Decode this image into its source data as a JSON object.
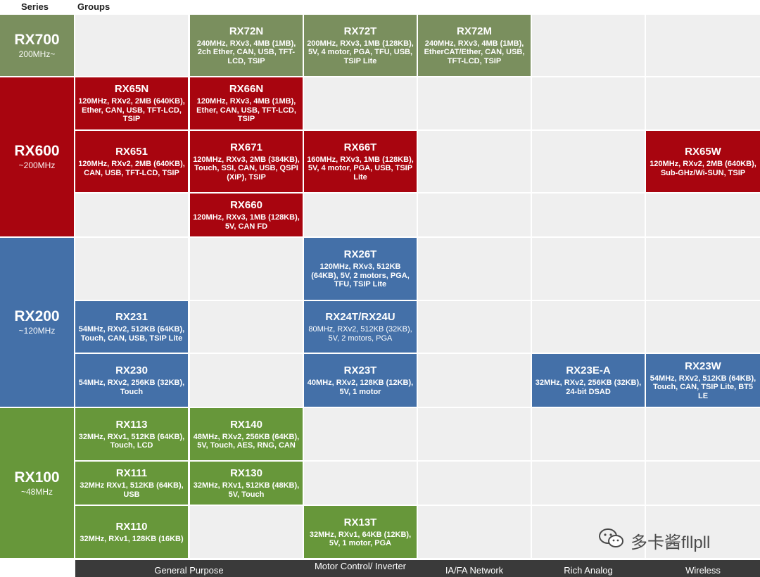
{
  "headers": {
    "series": "Series",
    "groups": "Groups"
  },
  "series": [
    {
      "name": "RX700",
      "freq": "200MHz~"
    },
    {
      "name": "RX600",
      "freq": "~200MHz"
    },
    {
      "name": "RX200",
      "freq": "~120MHz"
    },
    {
      "name": "RX100",
      "freq": "~48MHz"
    }
  ],
  "products": {
    "rx72n": {
      "name": "RX72N",
      "desc": "240MHz, RXv3, 4MB (1MB), 2ch Ether, CAN, USB, TFT-LCD, TSIP"
    },
    "rx72t": {
      "name": "RX72T",
      "desc": "200MHz, RXv3, 1MB (128KB), 5V, 4 motor, PGA, TFU, USB, TSIP Lite"
    },
    "rx72m": {
      "name": "RX72M",
      "desc": "240MHz, RXv3, 4MB (1MB), EtherCAT/Ether, CAN, USB, TFT-LCD, TSIP"
    },
    "rx65n": {
      "name": "RX65N",
      "desc": "120MHz, RXv2, 2MB (640KB), Ether, CAN, USB, TFT-LCD, TSIP"
    },
    "rx66n": {
      "name": "RX66N",
      "desc": "120MHz, RXv3, 4MB (1MB), Ether, CAN, USB, TFT-LCD, TSIP"
    },
    "rx651": {
      "name": "RX651",
      "desc": "120MHz, RXv2, 2MB (640KB), CAN, USB, TFT-LCD, TSIP"
    },
    "rx671": {
      "name": "RX671",
      "desc": "120MHz, RXv3, 2MB (384KB), Touch, SSI, CAN, USB, QSPI (XiP), TSIP"
    },
    "rx66t": {
      "name": "RX66T",
      "desc": "160MHz, RXv3, 1MB (128KB), 5V, 4 motor, PGA, USB, TSIP Lite"
    },
    "rx65w": {
      "name": "RX65W",
      "desc": "120MHz, RXv2, 2MB (640KB), Sub-GHz/Wi-SUN, TSIP"
    },
    "rx660": {
      "name": "RX660",
      "desc": "120MHz, RXv3, 1MB (128KB), 5V, CAN FD"
    },
    "rx26t": {
      "name": "RX26T",
      "desc": "120MHz, RXv3, 512KB (64KB), 5V, 2 motors, PGA, TFU, TSIP Lite"
    },
    "rx231": {
      "name": "RX231",
      "desc": "54MHz, RXv2, 512KB (64KB), Touch, CAN, USB, TSIP Lite"
    },
    "rx24t": {
      "name": "RX24T/RX24U",
      "desc": "80MHz, RXv2, 512KB (32KB), 5V, 2 motors, PGA"
    },
    "rx230": {
      "name": "RX230",
      "desc": "54MHz, RXv2, 256KB (32KB), Touch"
    },
    "rx23t": {
      "name": "RX23T",
      "desc": "40MHz, RXv2, 128KB (12KB), 5V, 1 motor"
    },
    "rx23ea": {
      "name": "RX23E-A",
      "desc": "32MHz, RXv2, 256KB (32KB), 24-bit DSAD"
    },
    "rx23w": {
      "name": "RX23W",
      "desc": "54MHz, RXv2, 512KB (64KB), Touch, CAN, TSIP Lite, BT5 LE"
    },
    "rx113": {
      "name": "RX113",
      "desc": "32MHz, RXv1, 512KB (64KB), Touch, LCD"
    },
    "rx140": {
      "name": "RX140",
      "desc": "48MHz, RXv2, 256KB (64KB), 5V, Touch, AES, RNG, CAN"
    },
    "rx111": {
      "name": "RX111",
      "desc": "32MHz RXv1, 512KB (64KB), USB"
    },
    "rx130": {
      "name": "RX130",
      "desc": "32MHz, RXv1, 512KB (48KB), 5V, Touch"
    },
    "rx110": {
      "name": "RX110",
      "desc": "32MHz, RXv1, 128KB (16KB)"
    },
    "rx13t": {
      "name": "RX13T",
      "desc": "32MHz, RXv1, 64KB (12KB), 5V, 1 motor, PGA"
    }
  },
  "groups": [
    "General Purpose",
    "Motor Control/ Inverter",
    "IA/FA Network",
    "Rich Analog",
    "Wireless"
  ],
  "watermark": {
    "text": "多卡酱fllpll",
    "icon": "wechat-icon"
  },
  "colors": {
    "rx700": "#7a8f5e",
    "rx600": "#a8050f",
    "rx200": "#4470a8",
    "rx100": "#67973a",
    "empty": "#efefef",
    "footer": "#3a3a3a"
  }
}
